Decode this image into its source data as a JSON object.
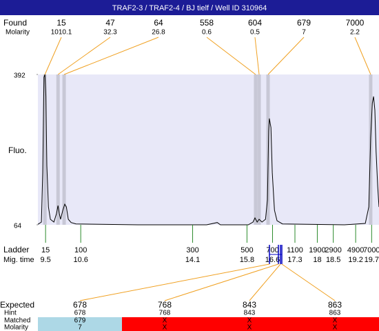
{
  "header": {
    "title": "TRAF2-3 / TRAF2-4 / BJ tielf / Well ID 310964"
  },
  "chart_data": {
    "type": "line",
    "ylabel": "Fluo.",
    "color": "#000000",
    "background": "#e8e8f8",
    "xlim": [
      9.26,
      19.93
    ],
    "ylim": [
      64,
      392
    ],
    "yticks": [
      64,
      392
    ],
    "x": [
      9.26,
      9.37,
      9.41,
      9.45,
      9.48,
      9.51,
      9.54,
      9.59,
      9.65,
      9.76,
      9.84,
      9.89,
      9.93,
      9.97,
      10.04,
      10.1,
      10.15,
      10.21,
      10.3,
      10.45,
      12.39,
      14.54,
      14.87,
      14.97,
      15.84,
      15.99,
      16.05,
      16.12,
      16.18,
      16.27,
      16.38,
      16.44,
      16.48,
      16.5,
      16.55,
      16.59,
      16.66,
      16.74,
      16.91,
      18.85,
      19.5,
      19.61,
      19.67,
      19.72,
      19.76,
      19.8,
      19.84,
      19.89,
      19.93
    ],
    "values": [
      65,
      70,
      178,
      386,
      392,
      344,
      193,
      103,
      76,
      70,
      88,
      106,
      88,
      76,
      96,
      109,
      103,
      76,
      69,
      66,
      64,
      64,
      69,
      64,
      64,
      70,
      79,
      70,
      76,
      70,
      76,
      118,
      269,
      296,
      276,
      178,
      96,
      73,
      66,
      64,
      67,
      103,
      254,
      329,
      344,
      314,
      223,
      148,
      103
    ]
  },
  "found": {
    "label": "Found",
    "molarity_label": "Molarity",
    "peaks": [
      {
        "size": 15,
        "molarity": 1010.1,
        "time": 9.48
      },
      {
        "size": 47,
        "molarity": 32.3,
        "time": 9.89
      },
      {
        "size": 64,
        "molarity": 26.8,
        "time": 10.08
      },
      {
        "size": 558,
        "molarity": 0.6,
        "time": 16.07
      },
      {
        "size": 604,
        "molarity": 0.5,
        "time": 16.18
      },
      {
        "size": 679,
        "molarity": 7,
        "time": 16.46
      },
      {
        "size": 7000,
        "molarity": 2.2,
        "time": 19.67
      }
    ]
  },
  "ladder": {
    "label": "Ladder",
    "time_label": "Mig. time",
    "sizes": [
      15,
      100,
      300,
      500,
      700,
      1100,
      1900,
      2900,
      4900,
      7000
    ],
    "times": [
      9.5,
      10.6,
      14.1,
      15.8,
      16.6,
      17.3,
      18,
      18.5,
      19.2,
      19.7
    ]
  },
  "expected": {
    "labels": [
      "Expected",
      "Hint",
      "Matched",
      "Molarity"
    ],
    "columns": [
      {
        "expected": 678,
        "hint": 678,
        "matched": 679,
        "molarity": 7
      },
      {
        "expected": 768,
        "hint": 768,
        "matched": "X",
        "molarity": "X"
      },
      {
        "expected": 843,
        "hint": 843,
        "matched": "X",
        "molarity": "X"
      },
      {
        "expected": 863,
        "hint": 863,
        "matched": "X",
        "molarity": "X"
      }
    ]
  }
}
